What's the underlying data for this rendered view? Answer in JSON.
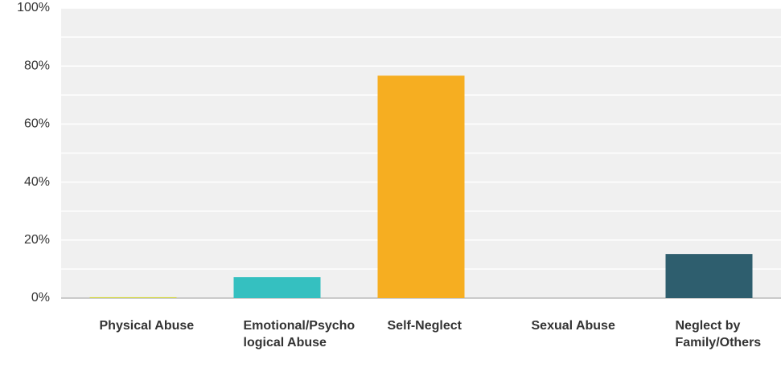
{
  "chart_data": {
    "type": "bar",
    "categories": [
      "Physical Abuse",
      "Emotional/Psychological Abuse",
      "Self-Neglect",
      "Sexual Abuse",
      "Neglect by Family/Others"
    ],
    "values": [
      0.3,
      7.2,
      76.7,
      0,
      15.2
    ],
    "colors": [
      "#d2d63c",
      "#35c0c0",
      "#f6ae21",
      null,
      "#2e5e6e"
    ],
    "ylim": [
      0,
      100
    ],
    "yticks": [
      {
        "value": 0,
        "label": "0%"
      },
      {
        "value": 20,
        "label": "20%"
      },
      {
        "value": 40,
        "label": "40%"
      },
      {
        "value": 60,
        "label": "60%"
      },
      {
        "value": 80,
        "label": "80%"
      },
      {
        "value": 100,
        "label": "100%"
      }
    ],
    "minor_yticks": [
      10,
      30,
      50,
      70,
      90
    ],
    "grid": true
  }
}
